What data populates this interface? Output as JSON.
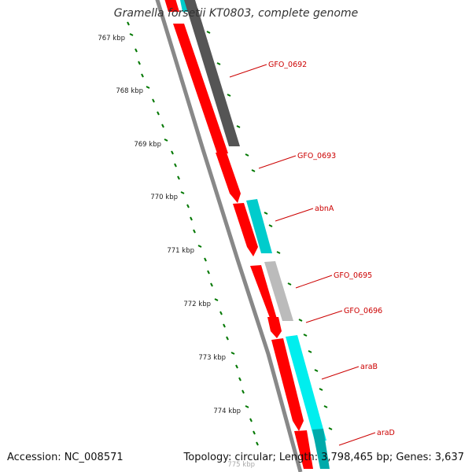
{
  "title": "Gramella forsetii KT0803, complete genome",
  "footer": {
    "accession_label": "Accession:",
    "accession": "NC_008571",
    "topology_label": "Topology:",
    "topology": "circular;",
    "length_label": "Length:",
    "length": "3,798,465 bp;",
    "genes_label": "Genes:",
    "genes": "3,637"
  },
  "ticks": [
    {
      "label": "767 kbp"
    },
    {
      "label": "768 kbp"
    },
    {
      "label": "769 kbp"
    },
    {
      "label": "770 kbp"
    },
    {
      "label": "771 kbp"
    },
    {
      "label": "772 kbp"
    },
    {
      "label": "773 kbp"
    },
    {
      "label": "774 kbp"
    },
    {
      "label": "775 kbp"
    }
  ],
  "gene_labels": [
    {
      "name": "GFO_0692"
    },
    {
      "name": "GFO_0693"
    },
    {
      "name": "abnA"
    },
    {
      "name": "GFO_0695"
    },
    {
      "name": "GFO_0696"
    },
    {
      "name": "araB"
    },
    {
      "name": "araD"
    }
  ],
  "colors": {
    "cds": "#ff0000",
    "gene_cyan": "#00cccc",
    "gene_dark": "#555555",
    "gene_light": "#bbbbbb",
    "backbone": "#888888",
    "tick": "#007700",
    "label": "#cc0000"
  }
}
